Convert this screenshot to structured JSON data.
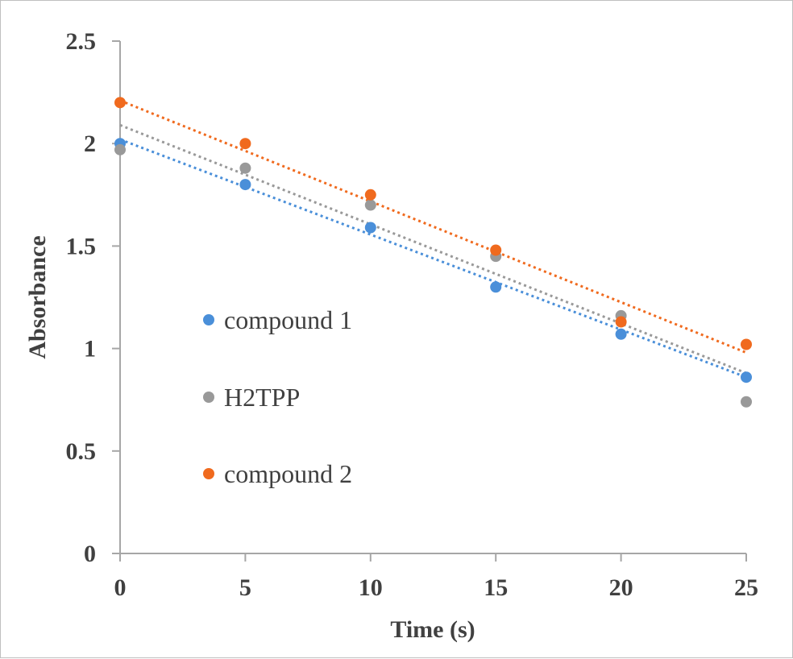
{
  "chart_data": {
    "type": "scatter",
    "xlabel": "Time (s)",
    "ylabel": "Absorbance",
    "xlim": [
      0,
      25
    ],
    "ylim": [
      0,
      2.5
    ],
    "xticks": [
      0,
      5,
      10,
      15,
      20,
      25
    ],
    "yticks": [
      0,
      0.5,
      1,
      1.5,
      2,
      2.5
    ],
    "xtick_labels": [
      "0",
      "5",
      "10",
      "15",
      "20",
      "25"
    ],
    "ytick_labels": [
      "0",
      "0.5",
      "1",
      "1.5",
      "2",
      "2.5"
    ],
    "grid": false,
    "legend_position": "center-left",
    "x": [
      0,
      5,
      10,
      15,
      20,
      25
    ],
    "series": [
      {
        "name": "compound 1",
        "color": "#4a8fd9",
        "values": [
          2.0,
          1.8,
          1.59,
          1.3,
          1.07,
          0.86
        ],
        "trendline": {
          "type": "linear",
          "style": "dotted",
          "start": 2.02,
          "end": 0.86
        }
      },
      {
        "name": "H2TPP",
        "color": "#999999",
        "values": [
          1.97,
          1.88,
          1.7,
          1.45,
          1.16,
          0.74
        ],
        "trendline": {
          "type": "linear",
          "style": "dotted",
          "start": 2.09,
          "end": 0.88
        }
      },
      {
        "name": "compound 2",
        "color": "#f06a1e",
        "values": [
          2.2,
          2.0,
          1.75,
          1.48,
          1.13,
          1.02
        ],
        "trendline": {
          "type": "linear",
          "style": "dotted",
          "start": 2.21,
          "end": 0.98
        }
      }
    ]
  }
}
